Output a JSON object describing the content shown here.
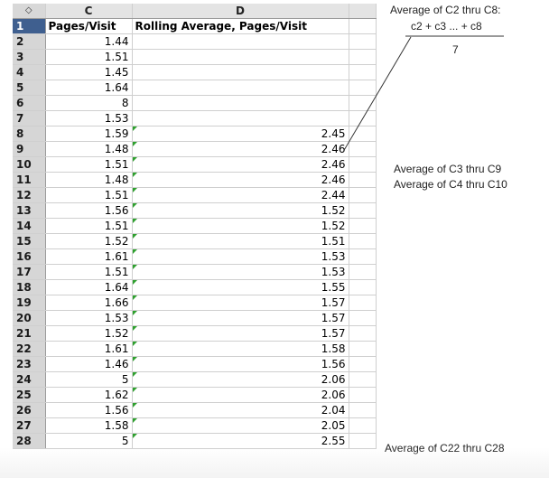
{
  "sheet": {
    "corner_glyph": "◇",
    "columns": [
      "C",
      "D"
    ],
    "row1": {
      "num": "1",
      "c": "Pages/Visit",
      "d": "Rolling Average, Pages/Visit"
    },
    "rows": [
      {
        "num": "2",
        "c": "1.44",
        "d": ""
      },
      {
        "num": "3",
        "c": "1.51",
        "d": ""
      },
      {
        "num": "4",
        "c": "1.45",
        "d": ""
      },
      {
        "num": "5",
        "c": "1.64",
        "d": ""
      },
      {
        "num": "6",
        "c": "8",
        "d": ""
      },
      {
        "num": "7",
        "c": "1.53",
        "d": ""
      },
      {
        "num": "8",
        "c": "1.59",
        "d": "2.45"
      },
      {
        "num": "9",
        "c": "1.48",
        "d": "2.46"
      },
      {
        "num": "10",
        "c": "1.51",
        "d": "2.46"
      },
      {
        "num": "11",
        "c": "1.48",
        "d": "2.46"
      },
      {
        "num": "12",
        "c": "1.51",
        "d": "2.44"
      },
      {
        "num": "13",
        "c": "1.56",
        "d": "1.52"
      },
      {
        "num": "14",
        "c": "1.51",
        "d": "1.52"
      },
      {
        "num": "15",
        "c": "1.52",
        "d": "1.51"
      },
      {
        "num": "16",
        "c": "1.61",
        "d": "1.53"
      },
      {
        "num": "17",
        "c": "1.51",
        "d": "1.53"
      },
      {
        "num": "18",
        "c": "1.64",
        "d": "1.55"
      },
      {
        "num": "19",
        "c": "1.66",
        "d": "1.57"
      },
      {
        "num": "20",
        "c": "1.53",
        "d": "1.57"
      },
      {
        "num": "21",
        "c": "1.52",
        "d": "1.57"
      },
      {
        "num": "22",
        "c": "1.61",
        "d": "1.58"
      },
      {
        "num": "23",
        "c": "1.46",
        "d": "1.56"
      },
      {
        "num": "24",
        "c": "5",
        "d": "2.06"
      },
      {
        "num": "25",
        "c": "1.62",
        "d": "2.06"
      },
      {
        "num": "26",
        "c": "1.56",
        "d": "2.04"
      },
      {
        "num": "27",
        "c": "1.58",
        "d": "2.05"
      },
      {
        "num": "28",
        "c": "5",
        "d": "2.55"
      }
    ]
  },
  "annotations": {
    "c2_c8": "Average of C2 thru C8:",
    "formula_top": "c2 + c3 ... + c8",
    "formula_bottom": "7",
    "c3_c9": "Average of C3 thru C9",
    "c4_c10": "Average of C4 thru C10",
    "c22_c28": "Average of C22 thru C28"
  },
  "colors": {
    "selected_row_header": "#3f5f8f",
    "error_triangle": "#2ea02e",
    "header_bg": "#e4e4e4"
  }
}
